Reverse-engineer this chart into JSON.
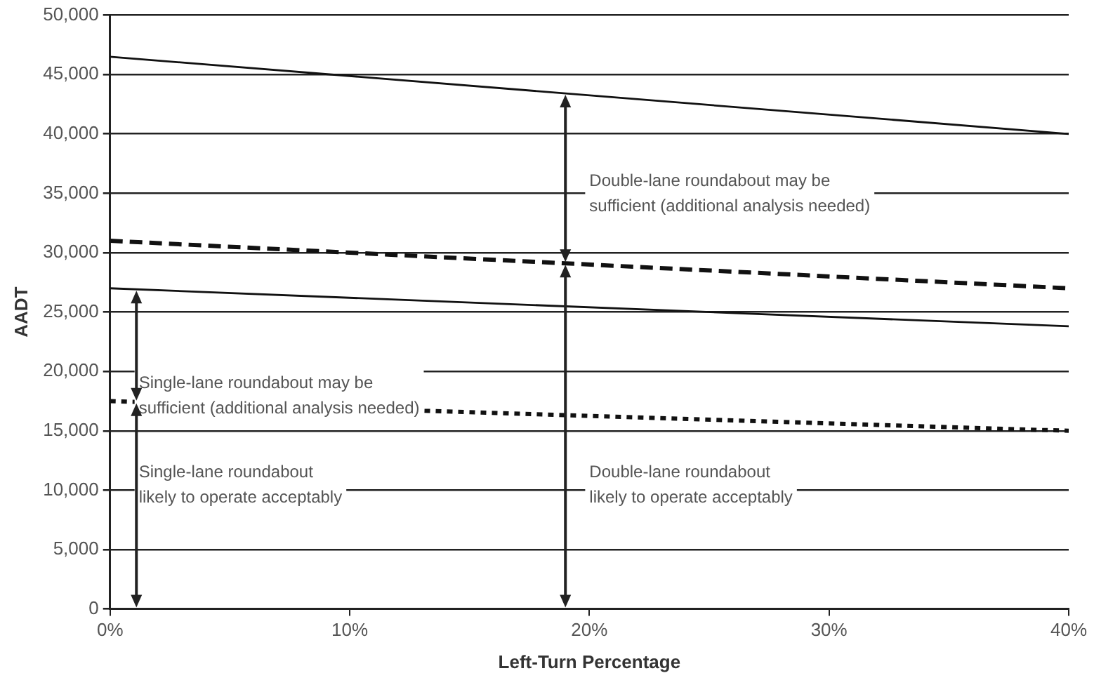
{
  "chart_data": {
    "type": "line",
    "xlabel": "Left-Turn Percentage",
    "ylabel": "AADT",
    "x": [
      0,
      40
    ],
    "series": [
      {
        "color": "#111111",
        "line_style": "solid",
        "values": [
          46500,
          40000
        ]
      },
      {
        "color": "#111111",
        "line_style": "dashed",
        "values": [
          31000,
          27000
        ]
      },
      {
        "color": "#111111",
        "line_style": "solid",
        "values": [
          27000,
          23800
        ]
      },
      {
        "color": "#111111",
        "line_style": "dotted",
        "values": [
          17500,
          15000
        ]
      }
    ],
    "xlim": [
      0,
      40
    ],
    "xticks": [
      {
        "value": 0,
        "label": "0%"
      },
      {
        "value": 10,
        "label": "10%"
      },
      {
        "value": 20,
        "label": "20%"
      },
      {
        "value": 30,
        "label": "30%"
      },
      {
        "value": 40,
        "label": "40%"
      }
    ],
    "ylim": [
      0,
      50000
    ],
    "yticks": [
      {
        "value": 0,
        "label": "0"
      },
      {
        "value": 5000,
        "label": "5,000"
      },
      {
        "value": 10000,
        "label": "10,000"
      },
      {
        "value": 15000,
        "label": "15,000"
      },
      {
        "value": 20000,
        "label": "20,000"
      },
      {
        "value": 25000,
        "label": "25,000"
      },
      {
        "value": 30000,
        "label": "30,000"
      },
      {
        "value": 35000,
        "label": "35,000"
      },
      {
        "value": 40000,
        "label": "40,000"
      },
      {
        "value": 45000,
        "label": "45,000"
      },
      {
        "value": 50000,
        "label": "50,000"
      }
    ],
    "grid": "y",
    "legend": false,
    "marker": "none",
    "annotations": [
      "Double-lane roundabout may be\nsufficient (additional analysis needed)",
      "Single-lane roundabout may be\nsufficient (additional analysis needed)",
      "Single-lane roundabout\nlikely to operate acceptably",
      "Double-lane roundabout\nlikely to operate acceptably"
    ]
  }
}
